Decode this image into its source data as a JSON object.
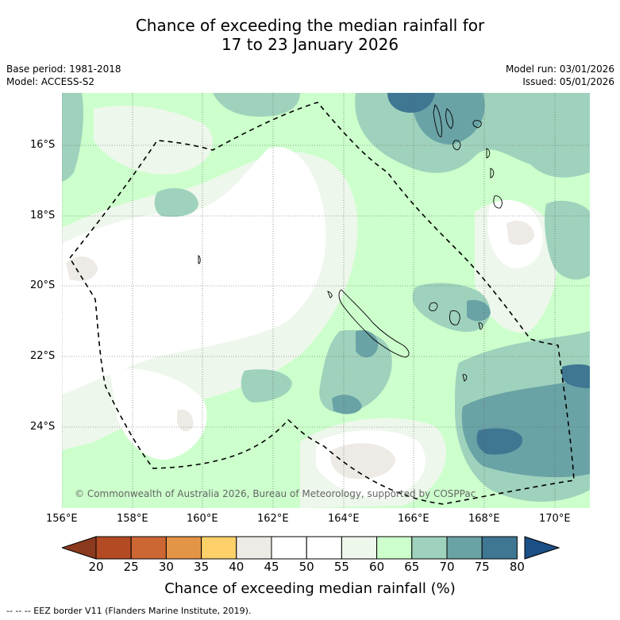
{
  "title": {
    "line1": "Chance of exceeding the median rainfall for",
    "line2": "17 to 23 January 2026"
  },
  "meta": {
    "base_period": "Base period: 1981-2018",
    "model": "Model: ACCESS-S2",
    "model_run": "Model run: 03/01/2026",
    "issued": "Issued: 05/01/2026"
  },
  "map": {
    "lat_ticks": [
      "16°S",
      "18°S",
      "20°S",
      "22°S",
      "24°S"
    ],
    "lon_ticks": [
      "156°E",
      "158°E",
      "160°E",
      "162°E",
      "164°E",
      "166°E",
      "168°E",
      "170°E"
    ],
    "copyright": "© Commonwealth of Australia 2026, Bureau of Meteorology, supported by COSPPac"
  },
  "colorbar": {
    "labels": [
      "20",
      "25",
      "30",
      "35",
      "40",
      "45",
      "50",
      "55",
      "60",
      "65",
      "70",
      "75",
      "80"
    ],
    "colors": [
      "#b34a23",
      "#cc6633",
      "#e39447",
      "#fdd06a",
      "#eeeae6",
      "#ffffff",
      "#ffffff",
      "#eef7ec",
      "#ccffcc",
      "#9fd2bc",
      "#6aa3a6",
      "#3f7793"
    ],
    "low_color": "#8b3a1e",
    "high_color": "#1b4f86",
    "title": "Chance of exceeding median rainfall (%)"
  },
  "footnote": "--  --  -- EEZ border V11 (Flanders Marine Institute, 2019)."
}
